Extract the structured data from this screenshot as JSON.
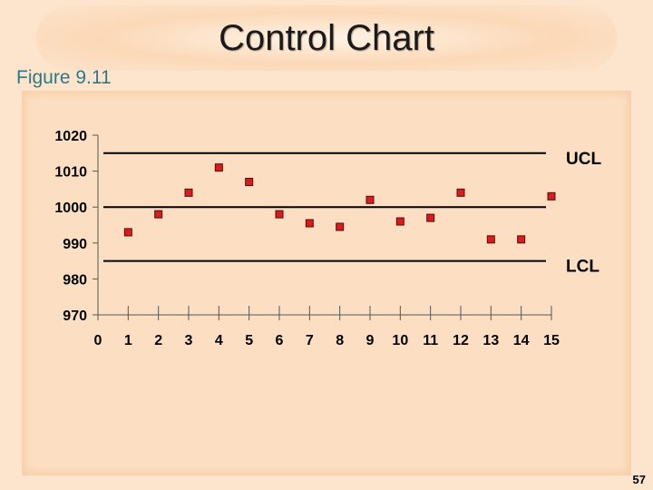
{
  "slide": {
    "title": "Control Chart",
    "subtitle": "Figure 9.11",
    "page_number": "57"
  },
  "chart_data": {
    "type": "scatter",
    "title": "Control Chart",
    "xlabel": "",
    "ylabel": "",
    "xlim": [
      0,
      15
    ],
    "ylim": [
      970,
      1020
    ],
    "x_ticks": [
      "0",
      "1",
      "2",
      "3",
      "4",
      "5",
      "6",
      "7",
      "8",
      "9",
      "10",
      "11",
      "12",
      "13",
      "14",
      "15"
    ],
    "y_ticks": [
      "970",
      "980",
      "990",
      "1000",
      "1010",
      "1020"
    ],
    "series": [
      {
        "x": [
          1,
          2,
          3,
          4,
          5,
          6,
          7,
          8,
          9,
          10,
          11,
          12,
          13,
          14,
          15
        ],
        "values": [
          993,
          998,
          1004,
          1011,
          1007,
          998,
          995.5,
          994.5,
          1002,
          996,
          997,
          1004,
          991,
          991,
          1003
        ],
        "color": "#d91c1c"
      }
    ],
    "reference_lines": [
      {
        "label": "UCL",
        "value": 1015
      },
      {
        "label": "",
        "value": 1000
      },
      {
        "label": "LCL",
        "value": 985
      }
    ],
    "grid": false
  }
}
